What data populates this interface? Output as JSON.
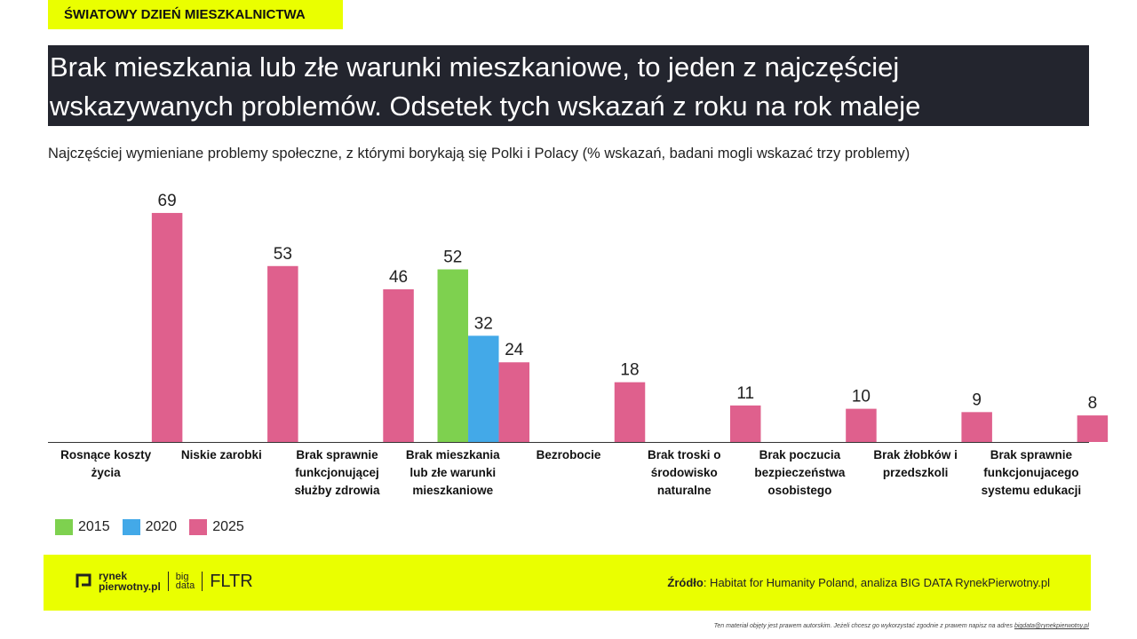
{
  "header": {
    "tag": "ŚWIATOWY DZIEŃ MIESZKALNICTWA",
    "title_lines": [
      "Brak mieszkania lub złe warunki mieszkaniowe, to jeden z najczęściej",
      "wskazywanych problemów. Odsetek tych wskazań z roku na rok maleje"
    ]
  },
  "chart_data": {
    "type": "bar",
    "subtitle": "Najczęściej wymieniane problemy społeczne, z którymi borykają się Polki i Polacy (% wskazań, badani mogli wskazać trzy problemy)",
    "categories": [
      "Rosnące koszty życia",
      "Niskie zarobki",
      "Brak sprawnie funkcjonującej służby zdrowia",
      "Brak mieszkania lub złe warunki mieszkaniowe",
      "Bezrobocie",
      "Brak troski o środowisko naturalne",
      "Brak poczucia bezpieczeństwa osobistego",
      "Brak żłobków i przedszkoli",
      "Brak sprawnie funkcjonujacego systemu edukacji"
    ],
    "series": [
      {
        "name": "2015",
        "color": "#7ed14f",
        "values": [
          null,
          null,
          null,
          52,
          null,
          null,
          null,
          null,
          null
        ]
      },
      {
        "name": "2020",
        "color": "#43a9e8",
        "values": [
          null,
          null,
          null,
          32,
          null,
          null,
          null,
          null,
          null
        ]
      },
      {
        "name": "2025",
        "color": "#df608d",
        "values": [
          69,
          53,
          46,
          24,
          18,
          11,
          10,
          9,
          8
        ]
      }
    ],
    "legend": "bottom-left"
  },
  "footer": {
    "logo_rynek": "rynek",
    "logo_pierwotny": "pierwotny.pl",
    "logo_big": "big",
    "logo_data": "data",
    "logo_fltr": "FLTR",
    "source_label": "Źródło",
    "source_text": ": Habitat for Humanity Poland, analiza BIG DATA RynekPierwotny.pl"
  },
  "disclaimer": "Ten materiał objęty jest prawem autorskim. Jeżeli chcesz go wykorzystać zgodnie z prawem napisz na adres",
  "disclaimer_email": "bigdata@rynekpierwotny.pl"
}
